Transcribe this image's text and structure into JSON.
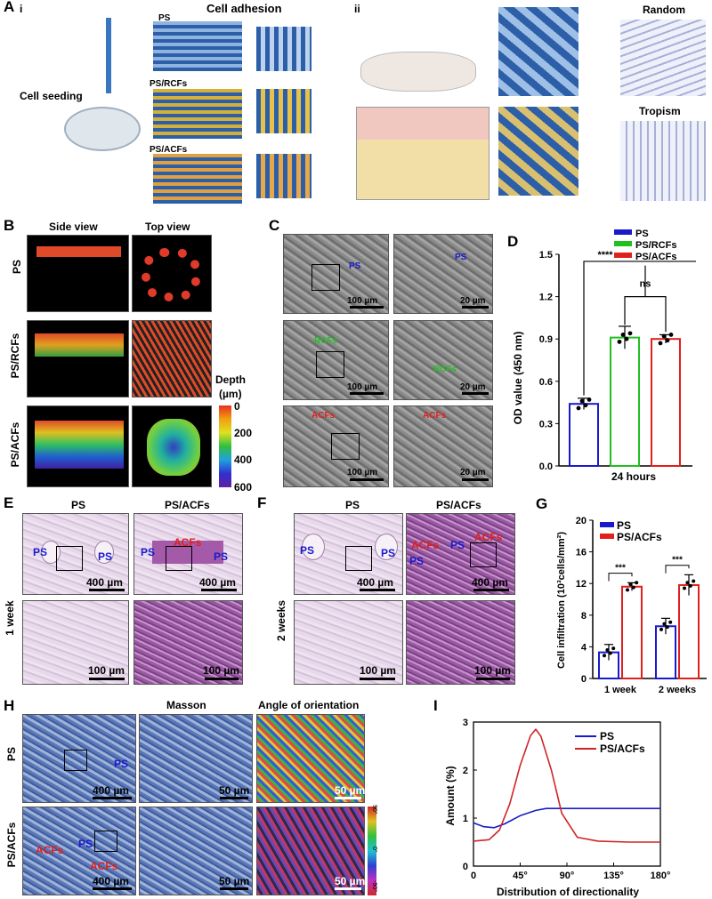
{
  "lb": [
    "A",
    "B",
    "C",
    "D",
    "E",
    "F",
    "G",
    "H",
    "I"
  ],
  "a": {
    "i": "i",
    "ii": "ii",
    "ca": "Cell adhesion",
    "cs": "Cell seeding",
    "ps": "PS",
    "rc": "PS/RCFs",
    "ac": "PS/ACFs",
    "rn": "Random",
    "tr": "Tropism"
  },
  "b": {
    "sv": "Side view",
    "tv": "Top view",
    "r": [
      "PS",
      "PS/RCFs",
      "PS/ACFs"
    ],
    "dt": "Depth",
    "du": "(µm)",
    "dk": [
      "0",
      "200",
      "400",
      "600"
    ]
  },
  "c": {
    "ps": "PS",
    "rc": "RCFs",
    "ac": "ACFs",
    "s100": "100 µm",
    "s20": "20 µm"
  },
  "e": {
    "ps": "PS",
    "pa": "PS/ACFs",
    "ac": "ACFs",
    "wk": "1 week",
    "s400": "400 µm",
    "s100": "100 µm"
  },
  "f": {
    "wk": "2 weeks"
  },
  "h": {
    "ms": "Masson",
    "ao": "Angle of orientation",
    "r": [
      "PS",
      "PS/ACFs"
    ],
    "s50": "50 µm",
    "s400": "400 µm",
    "ps": "PS",
    "ac": "ACFs",
    "cb": [
      "90°",
      "0°",
      "-90°"
    ]
  },
  "chart_data": [
    {
      "type": "bar",
      "ylabel": "OD value (450 nm)",
      "xlabel": "24 hours",
      "ylim": [
        0,
        1.5
      ],
      "yt": [
        "0.0",
        "0.3",
        "0.6",
        "0.9",
        "1.2",
        "1.5"
      ],
      "categories": [
        "PS",
        "PS/RCFs",
        "PS/ACFs"
      ],
      "values": [
        0.44,
        0.91,
        0.9
      ],
      "err": [
        0.04,
        0.08,
        0.03
      ],
      "colors": [
        "#1a1acc",
        "#21c021",
        "#e0201c"
      ],
      "sig": [
        "****",
        "ns"
      ]
    },
    {
      "type": "bar",
      "ylabel": "Cell infiltration (10³cells/mm²)",
      "categories": [
        "1 week",
        "2 weeks"
      ],
      "ylim": [
        0,
        20
      ],
      "yt": [
        "0",
        "4",
        "8",
        "12",
        "16",
        "20"
      ],
      "series": [
        {
          "name": "PS",
          "values": [
            3.3,
            6.6
          ],
          "err": [
            1.0,
            1.0
          ],
          "color": "#1a1acc"
        },
        {
          "name": "PS/ACFs",
          "values": [
            11.6,
            11.8
          ],
          "err": [
            0.5,
            1.3
          ],
          "color": "#e0201c"
        }
      ],
      "sig": [
        "***",
        "***"
      ]
    },
    {
      "type": "line",
      "ylabel": "Amount (%)",
      "xlabel": "Distribution of directionality",
      "xlim": [
        0,
        180
      ],
      "ylim": [
        0,
        3
      ],
      "xt": [
        "0",
        "45°",
        "90°",
        "135°",
        "180°"
      ],
      "yt": [
        "0",
        "1",
        "2",
        "3"
      ],
      "series": [
        {
          "name": "PS",
          "color": "#1a1acc",
          "x": [
            0,
            10,
            20,
            30,
            45,
            60,
            70,
            90,
            120,
            150,
            180
          ],
          "y": [
            0.9,
            0.82,
            0.8,
            0.88,
            1.05,
            1.16,
            1.2,
            1.2,
            1.2,
            1.2,
            1.2
          ]
        },
        {
          "name": "PS/ACFs",
          "color": "#d02424",
          "x": [
            0,
            15,
            25,
            35,
            45,
            55,
            60,
            65,
            75,
            85,
            100,
            120,
            150,
            180
          ],
          "y": [
            0.52,
            0.55,
            0.75,
            1.3,
            2.1,
            2.72,
            2.85,
            2.7,
            2.0,
            1.1,
            0.6,
            0.52,
            0.5,
            0.5
          ]
        }
      ]
    }
  ]
}
